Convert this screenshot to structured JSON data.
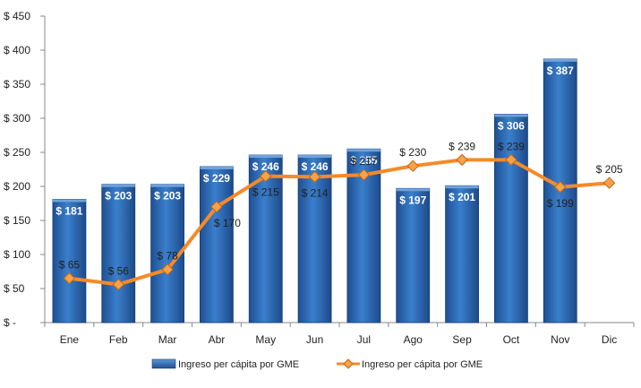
{
  "chart_data": {
    "type": "bar",
    "categories": [
      "Ene",
      "Feb",
      "Mar",
      "Abr",
      "May",
      "Jun",
      "Jul",
      "Ago",
      "Sep",
      "Oct",
      "Nov",
      "Dic"
    ],
    "y_ticks": [
      0,
      50,
      100,
      150,
      200,
      250,
      300,
      350,
      400,
      450
    ],
    "y_tick_labels": [
      "$ -",
      "$ 50",
      "$ 100",
      "$ 150",
      "$ 200",
      "$ 250",
      "$ 300",
      "$ 350",
      "$ 400",
      "$ 450"
    ],
    "ylim": [
      0,
      450
    ],
    "grid": false,
    "legend_position": "bottom",
    "series": [
      {
        "name": "Ingreso per cápita por GME",
        "type": "bar",
        "color": "#2f6db5",
        "values": [
          181,
          203,
          203,
          229,
          246,
          246,
          255,
          197,
          201,
          306,
          387,
          null
        ],
        "labels": [
          "$ 181",
          "$ 203",
          "$ 203",
          "$ 229",
          "$ 246",
          "$ 246",
          "$ 255",
          "$ 197",
          "$ 201",
          "$ 306",
          "$ 387",
          ""
        ]
      },
      {
        "name": "Ingreso per cápita por GME",
        "type": "line",
        "color": "#f58a2a",
        "values": [
          65,
          56,
          78,
          170,
          215,
          214,
          217,
          230,
          239,
          239,
          199,
          205
        ],
        "labels": [
          "$ 65",
          "$ 56",
          "$ 78",
          "$ 170",
          "$ 215",
          "$ 214",
          "$ 217",
          "$ 230",
          "$ 239",
          "$ 239",
          "$ 199",
          "$ 205"
        ]
      }
    ]
  }
}
